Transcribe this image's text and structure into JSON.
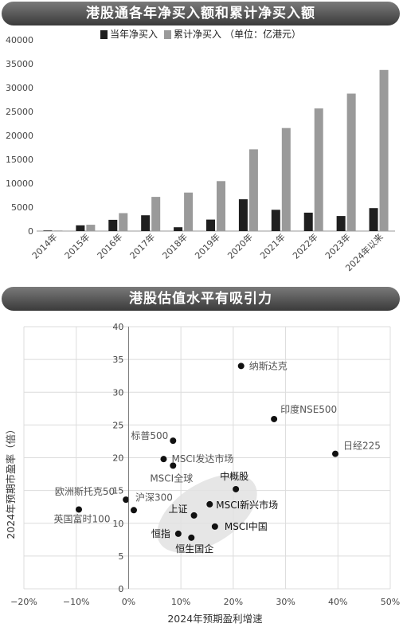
{
  "chart_data": [
    {
      "type": "bar",
      "title": "港股通各年净买入额和累计净买入额",
      "unit_note": "（单位：亿港元）",
      "categories": [
        "2014年",
        "2015年",
        "2016年",
        "2017年",
        "2018年",
        "2019年",
        "2020年",
        "2021年",
        "2022年",
        "2023年",
        "2024年以来"
      ],
      "series": [
        {
          "name": "当年净买入",
          "color": "#1f1f1f",
          "values": [
            120,
            1200,
            2350,
            3300,
            800,
            2400,
            6650,
            4450,
            3850,
            3150,
            4800
          ]
        },
        {
          "name": "累计净买入",
          "color": "#9a9a9a",
          "values": [
            120,
            1320,
            3750,
            7150,
            8050,
            10450,
            17100,
            21550,
            25650,
            28750,
            33700
          ]
        }
      ],
      "y_ticks": [
        "0",
        "5000",
        "10000",
        "15000",
        "20000",
        "25000",
        "30000",
        "35000",
        "40000"
      ],
      "ylim": [
        0,
        40000
      ],
      "grid": false,
      "legend_position": "top-right"
    },
    {
      "type": "scatter",
      "title": "港股估值水平有吸引力",
      "xlabel": "2024年预期盈利增速",
      "ylabel": "2024年预期市盈率（倍）",
      "xlim": [
        -20,
        50
      ],
      "ylim": [
        0,
        40
      ],
      "x_ticks": [
        "−20%",
        "−10%",
        "0%",
        "10%",
        "20%",
        "30%",
        "40%",
        "50%"
      ],
      "y_ticks": [
        "0",
        "5",
        "10",
        "15",
        "20",
        "25",
        "30",
        "35",
        "40"
      ],
      "grid": true,
      "points": [
        {
          "label": "纳斯达克",
          "x": 21.5,
          "y": 34.0,
          "highlight": false
        },
        {
          "label": "印度NSE500",
          "x": 27.8,
          "y": 25.9,
          "highlight": false
        },
        {
          "label": "标普500",
          "x": 8.5,
          "y": 22.6,
          "highlight": false
        },
        {
          "label": "日经225",
          "x": 39.5,
          "y": 20.6,
          "highlight": false
        },
        {
          "label": "MSCI发达市场",
          "x": 6.7,
          "y": 19.8,
          "highlight": false
        },
        {
          "label": "MSCI全球",
          "x": 8.5,
          "y": 18.8,
          "highlight": false
        },
        {
          "label": "中概股",
          "x": 20.5,
          "y": 15.2,
          "highlight": true
        },
        {
          "label": "欧洲斯托克50",
          "x": -0.5,
          "y": 13.6,
          "highlight": false
        },
        {
          "label": "沪深300",
          "x": 1.0,
          "y": 12.0,
          "highlight": false
        },
        {
          "label": "英国富时100",
          "x": -9.5,
          "y": 12.1,
          "highlight": false
        },
        {
          "label": "MSCI新兴市场",
          "x": 15.5,
          "y": 12.9,
          "highlight": true
        },
        {
          "label": "上证",
          "x": 12.5,
          "y": 11.2,
          "highlight": true
        },
        {
          "label": "MSCI中国",
          "x": 16.5,
          "y": 9.5,
          "highlight": true
        },
        {
          "label": "恒指",
          "x": 9.5,
          "y": 8.4,
          "highlight": true
        },
        {
          "label": "恒生国企",
          "x": 12.0,
          "y": 7.8,
          "highlight": true
        }
      ]
    }
  ]
}
